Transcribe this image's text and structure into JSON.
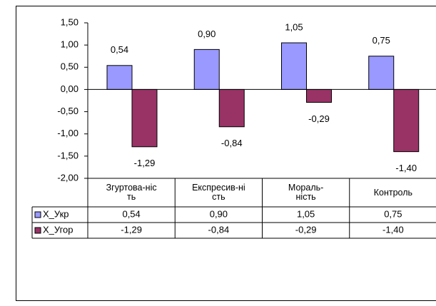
{
  "chart_data": {
    "type": "bar",
    "categories": [
      "Згуртова-ніс\nть",
      "Експресив-ні\nсть",
      "Мораль-\nність",
      "Контроль"
    ],
    "series": [
      {
        "name": "X_Укр",
        "color": "#9999ff",
        "values": [
          0.54,
          0.9,
          1.05,
          0.75
        ],
        "value_labels": [
          "0,54",
          "0,90",
          "1,05",
          "0,75"
        ]
      },
      {
        "name": "X_Угор",
        "color": "#993366",
        "values": [
          -1.29,
          -0.84,
          -0.29,
          -1.4
        ],
        "value_labels": [
          "-1,29",
          "-0,84",
          "-0,29",
          "-1,40"
        ]
      }
    ],
    "ylim": [
      -2,
      1.5
    ],
    "yticks": [
      {
        "value": -2,
        "label": "-2,00"
      },
      {
        "value": -1.5,
        "label": "-1,50"
      },
      {
        "value": -1,
        "label": "-1,00"
      },
      {
        "value": -0.5,
        "label": "-0,50"
      },
      {
        "value": 0,
        "label": "0,00"
      },
      {
        "value": 0.5,
        "label": "0,50"
      },
      {
        "value": 1,
        "label": "1,00"
      },
      {
        "value": 1.5,
        "label": "1,50"
      }
    ],
    "data_table": true
  }
}
